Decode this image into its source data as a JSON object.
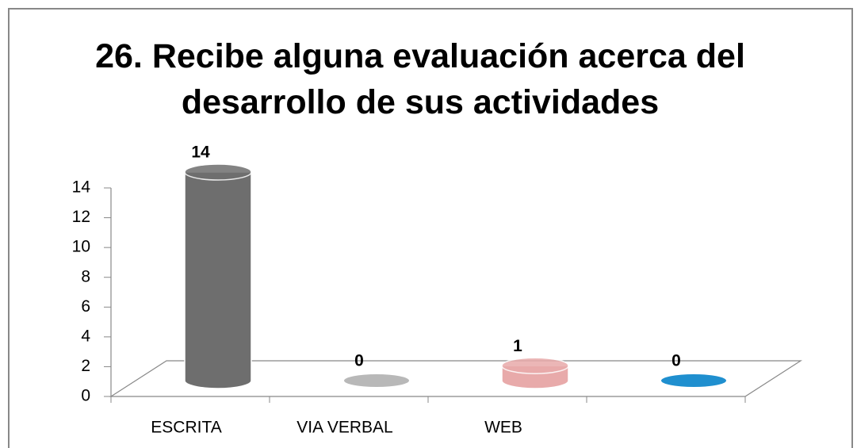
{
  "chart_data": {
    "type": "bar3d",
    "title": "26. Recibe alguna evaluación acerca del desarrollo de sus actividades",
    "categories": [
      "ESCRITA",
      "VIA VERBAL",
      "WEB",
      null
    ],
    "values": [
      14,
      0,
      1,
      0
    ],
    "colors": [
      "#6e6e6e",
      "#b8b8b8",
      "#e8aaaa",
      "#1f8fcf"
    ],
    "ylim": [
      0,
      14
    ],
    "yticks": [
      0,
      2,
      4,
      6,
      8,
      10,
      12,
      14
    ]
  }
}
